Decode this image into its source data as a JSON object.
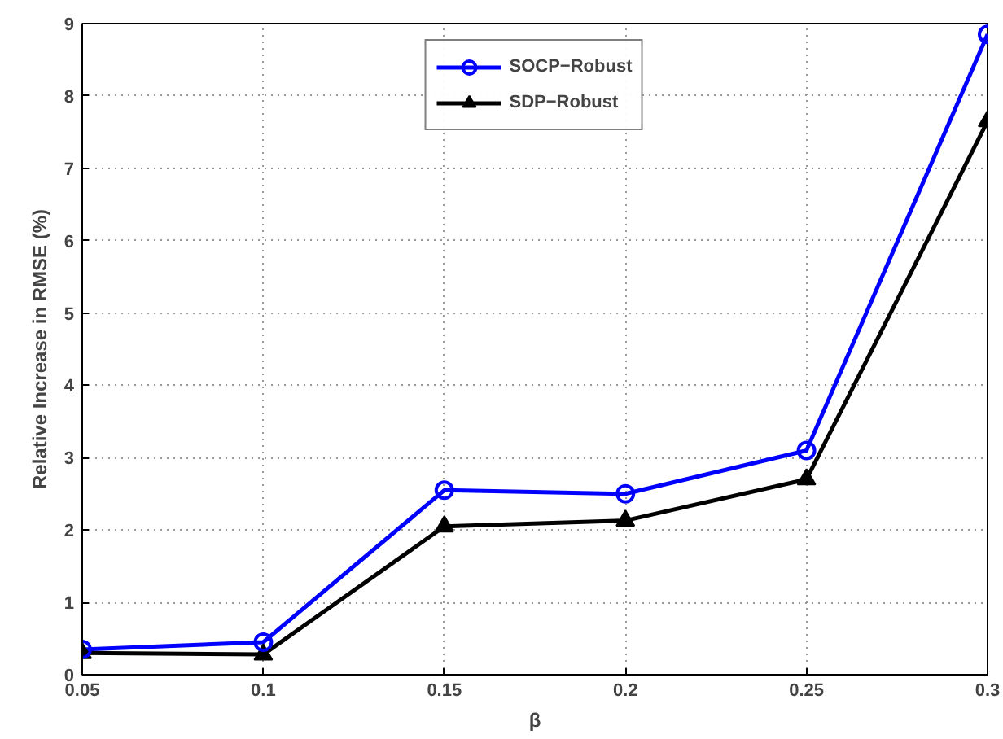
{
  "chart_data": {
    "type": "line",
    "xlabel": "β",
    "ylabel": "Relative Increase in RMSE (%)",
    "x": [
      0.05,
      0.1,
      0.15,
      0.2,
      0.25,
      0.3
    ],
    "xlim": [
      0.05,
      0.3
    ],
    "xticks": [
      {
        "value": 0.05,
        "label": "0.05"
      },
      {
        "value": 0.1,
        "label": "0.1"
      },
      {
        "value": 0.15,
        "label": "0.15"
      },
      {
        "value": 0.2,
        "label": "0.2"
      },
      {
        "value": 0.25,
        "label": "0.25"
      },
      {
        "value": 0.3,
        "label": "0.3"
      }
    ],
    "ylim": [
      0,
      9
    ],
    "yticks": [
      0,
      1,
      2,
      3,
      4,
      5,
      6,
      7,
      8,
      9
    ],
    "grid": true,
    "legend": "top",
    "line_style": "solid",
    "series": [
      {
        "name": "SOCP−Robust",
        "color": "#0000ff",
        "marker": "circle",
        "values": [
          0.35,
          0.45,
          2.55,
          2.5,
          3.1,
          8.85
        ]
      },
      {
        "name": "SDP−Robust",
        "color": "#000000",
        "marker": "triangle",
        "values": [
          0.3,
          0.28,
          2.05,
          2.13,
          2.7,
          7.65
        ]
      }
    ]
  }
}
